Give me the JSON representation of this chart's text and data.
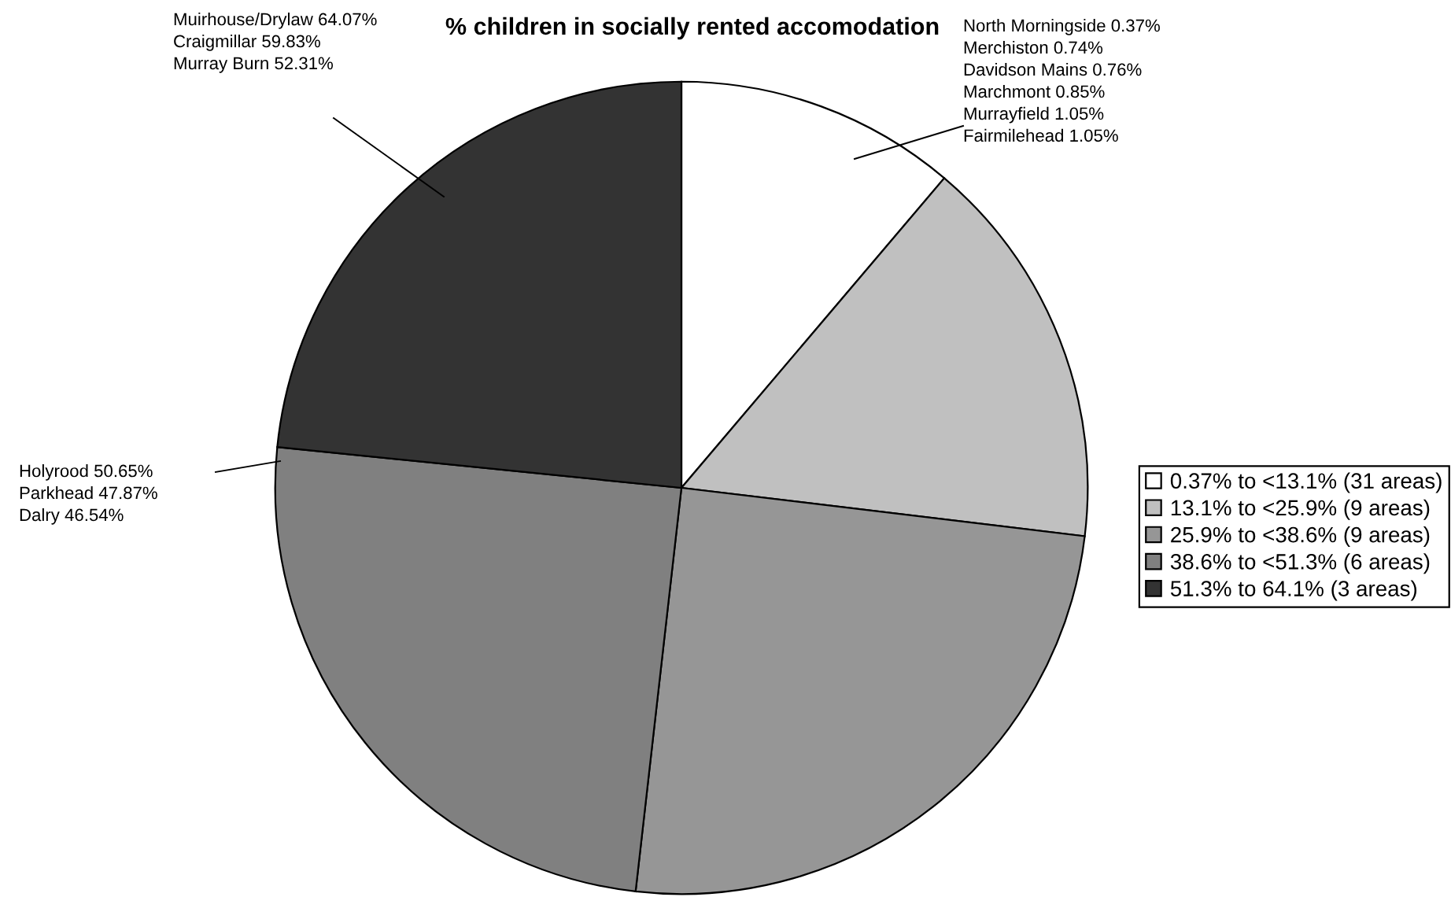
{
  "chart_data": {
    "type": "pie",
    "title": "% children in socially rented accomodation",
    "categories": [
      "0.37% to <13.1% (31 areas)",
      "13.1% to <25.9% (9 areas)",
      "25.9% to <38.6% (9 areas)",
      "38.6% to <51.3% (6 areas)",
      "51.3% to 64.1% (3 areas)"
    ],
    "values": [
      11.2,
      15.7,
      24.9,
      24.8,
      23.4
    ],
    "colors": [
      "#ffffff",
      "#c0c0c0",
      "#969696",
      "#808080",
      "#333333"
    ],
    "legend": "right",
    "annotations": [
      "North Morningside 0.37%\nMerchiston 0.74%\nDavidson Mains 0.76%\nMarchmont 0.85%\nMurrayfield 1.05%\nFairmilehead 1.05%",
      "Muirhouse/Drylaw 64.07%\nCraigmillar 59.83%\nMurray Burn 52.31%",
      "Holyrood 50.65%\nParkhead 47.87%\nDalry 46.54%"
    ]
  }
}
